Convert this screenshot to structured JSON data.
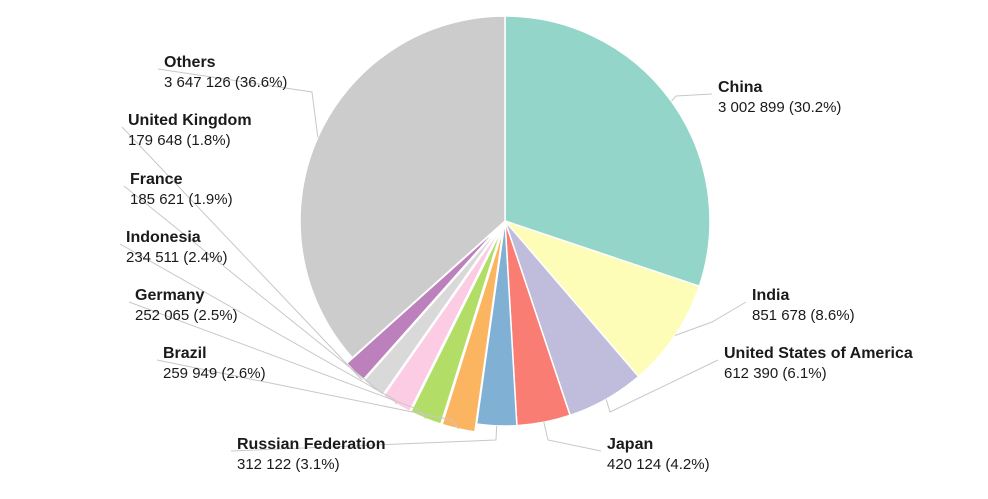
{
  "chart_data": {
    "type": "pie",
    "title": "",
    "slices": [
      {
        "label": "China",
        "value": 3002899,
        "display": "3 002 899 (30.2%)",
        "color": "#93d5c8"
      },
      {
        "label": "India",
        "value": 851678,
        "display": "851 678 (8.6%)",
        "color": "#fdfdb8"
      },
      {
        "label": "United States of America",
        "value": 612390,
        "display": "612 390 (6.1%)",
        "color": "#c0bcdc"
      },
      {
        "label": "Japan",
        "value": 420124,
        "display": "420 124 (4.2%)",
        "color": "#f97d72"
      },
      {
        "label": "Russian Federation",
        "value": 312122,
        "display": "312 122 (3.1%)",
        "color": "#80b0d4"
      },
      {
        "label": "Brazil",
        "value": 259949,
        "display": "259 949 (2.6%)",
        "color": "#fbb460"
      },
      {
        "label": "Germany",
        "value": 252065,
        "display": "252 065 (2.5%)",
        "color": "#b2de68"
      },
      {
        "label": "Indonesia",
        "value": 234511,
        "display": "234 511 (2.4%)",
        "color": "#fbcce4"
      },
      {
        "label": "France",
        "value": 185621,
        "display": "185 621 (1.9%)",
        "color": "#d9d9d9"
      },
      {
        "label": "United Kingdom",
        "value": 179648,
        "display": "179 648 (1.8%)",
        "color": "#bc80bc"
      },
      {
        "label": "Others",
        "value": 3647126,
        "display": "3 647 126 (36.6%)",
        "color": "#cccccc"
      }
    ],
    "leader_line_color": "#c8c8c8",
    "slice_border_color": "#ffffff"
  }
}
